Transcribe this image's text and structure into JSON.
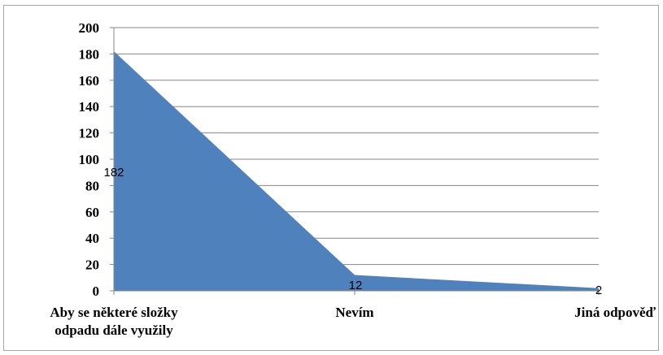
{
  "chart_data": {
    "type": "area",
    "categories": [
      [
        "Aby se některé složky",
        "odpadu dále využily"
      ],
      [
        "Nevím"
      ],
      [
        "Jiná odpověď"
      ]
    ],
    "values": [
      182,
      12,
      2
    ],
    "data_labels": [
      "182",
      "12",
      "2"
    ],
    "ylim": [
      0,
      200
    ],
    "yticks": [
      0,
      20,
      40,
      60,
      80,
      100,
      120,
      140,
      160,
      180,
      200
    ],
    "grid": "horizontal",
    "legend": "none",
    "series_color": "#4f81bd",
    "gridline_color": "#868686"
  }
}
